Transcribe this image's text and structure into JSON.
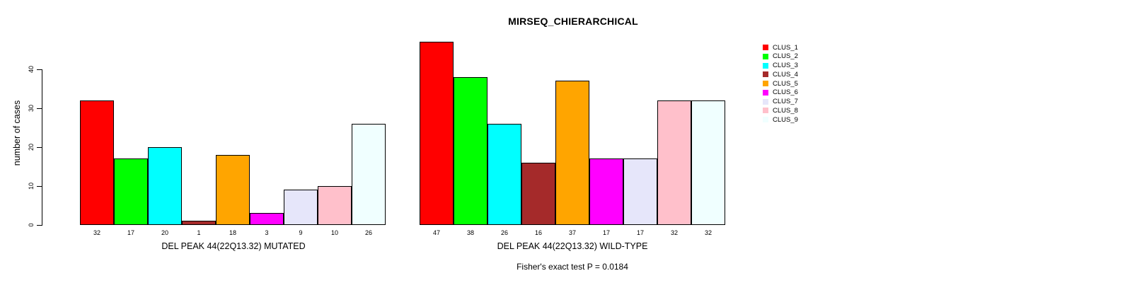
{
  "title": "MIRSEQ_CHIERARCHICAL",
  "ylabel": "number of cases",
  "footer_note": "Fisher's exact test P = 0.0184",
  "legend": {
    "position": "right",
    "items": [
      {
        "label": "CLUS_1",
        "color": "#FF0000"
      },
      {
        "label": "CLUS_2",
        "color": "#00FF00"
      },
      {
        "label": "CLUS_3",
        "color": "#00FFFF"
      },
      {
        "label": "CLUS_4",
        "color": "#A52A2A"
      },
      {
        "label": "CLUS_5",
        "color": "#FFA500"
      },
      {
        "label": "CLUS_6",
        "color": "#FF00FF"
      },
      {
        "label": "CLUS_7",
        "color": "#E6E6FA"
      },
      {
        "label": "CLUS_8",
        "color": "#FFC0CB"
      },
      {
        "label": "CLUS_9",
        "color": "#F0FFFF"
      }
    ]
  },
  "chart_data": [
    {
      "type": "bar",
      "title": "MIRSEQ_CHIERARCHICAL",
      "xlabel": "DEL PEAK 44(22Q13.32) MUTATED",
      "ylabel": "number of cases",
      "categories": [
        "CLUS_1",
        "CLUS_2",
        "CLUS_3",
        "CLUS_4",
        "CLUS_5",
        "CLUS_6",
        "CLUS_7",
        "CLUS_8",
        "CLUS_9"
      ],
      "values": [
        32,
        17,
        20,
        1,
        18,
        3,
        9,
        10,
        26
      ],
      "bar_value_labels": [
        "32",
        "17",
        "20",
        "1",
        "18",
        "3",
        "9",
        "10",
        "26"
      ],
      "colors": [
        "#FF0000",
        "#00FF00",
        "#00FFFF",
        "#A52A2A",
        "#FFA500",
        "#FF00FF",
        "#E6E6FA",
        "#FFC0CB",
        "#F0FFFF"
      ],
      "yticks": [
        0,
        10,
        20,
        30,
        40
      ],
      "ylim": [
        0,
        40
      ],
      "grid": false,
      "yaxis_shown": true
    },
    {
      "type": "bar",
      "xlabel": "DEL PEAK 44(22Q13.32) WILD-TYPE",
      "categories": [
        "CLUS_1",
        "CLUS_2",
        "CLUS_3",
        "CLUS_4",
        "CLUS_5",
        "CLUS_6",
        "CLUS_7",
        "CLUS_8",
        "CLUS_9"
      ],
      "values": [
        47,
        38,
        26,
        16,
        37,
        17,
        17,
        32,
        32
      ],
      "bar_value_labels": [
        "47",
        "38",
        "26",
        "16",
        "37",
        "17",
        "17",
        "32",
        "32"
      ],
      "colors": [
        "#FF0000",
        "#00FF00",
        "#00FFFF",
        "#A52A2A",
        "#FFA500",
        "#FF00FF",
        "#E6E6FA",
        "#FFC0CB",
        "#F0FFFF"
      ],
      "yticks": [
        0,
        10,
        20,
        30,
        40
      ],
      "ylim": [
        0,
        40
      ],
      "grid": false,
      "yaxis_shown": false
    }
  ]
}
